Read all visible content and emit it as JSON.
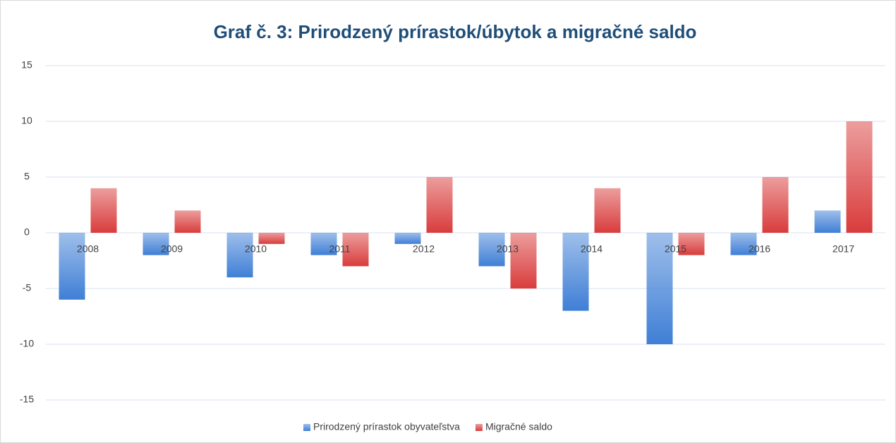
{
  "chart_data": {
    "type": "bar",
    "title": "Graf č. 3: Prirodzený prírastok/úbytok  a migračné saldo",
    "categories": [
      "2008",
      "2009",
      "2010",
      "2011",
      "2012",
      "2013",
      "2014",
      "2015",
      "2016",
      "2017"
    ],
    "series": [
      {
        "name": "Prirodzený prírastok obyvateľstva",
        "color": "#3f7fd6",
        "values": [
          -6,
          -2,
          -4,
          -2,
          -1,
          -3,
          -7,
          -10,
          -2,
          2
        ]
      },
      {
        "name": "Migračné saldo",
        "color": "#d93c3c",
        "values": [
          4,
          2,
          -1,
          -3,
          5,
          -5,
          4,
          -2,
          5,
          10
        ]
      }
    ],
    "ylim": [
      -15,
      15
    ],
    "yticks": [
      -15,
      -10,
      -5,
      0,
      5,
      10,
      15
    ],
    "grid": true,
    "legend": "bottom"
  }
}
